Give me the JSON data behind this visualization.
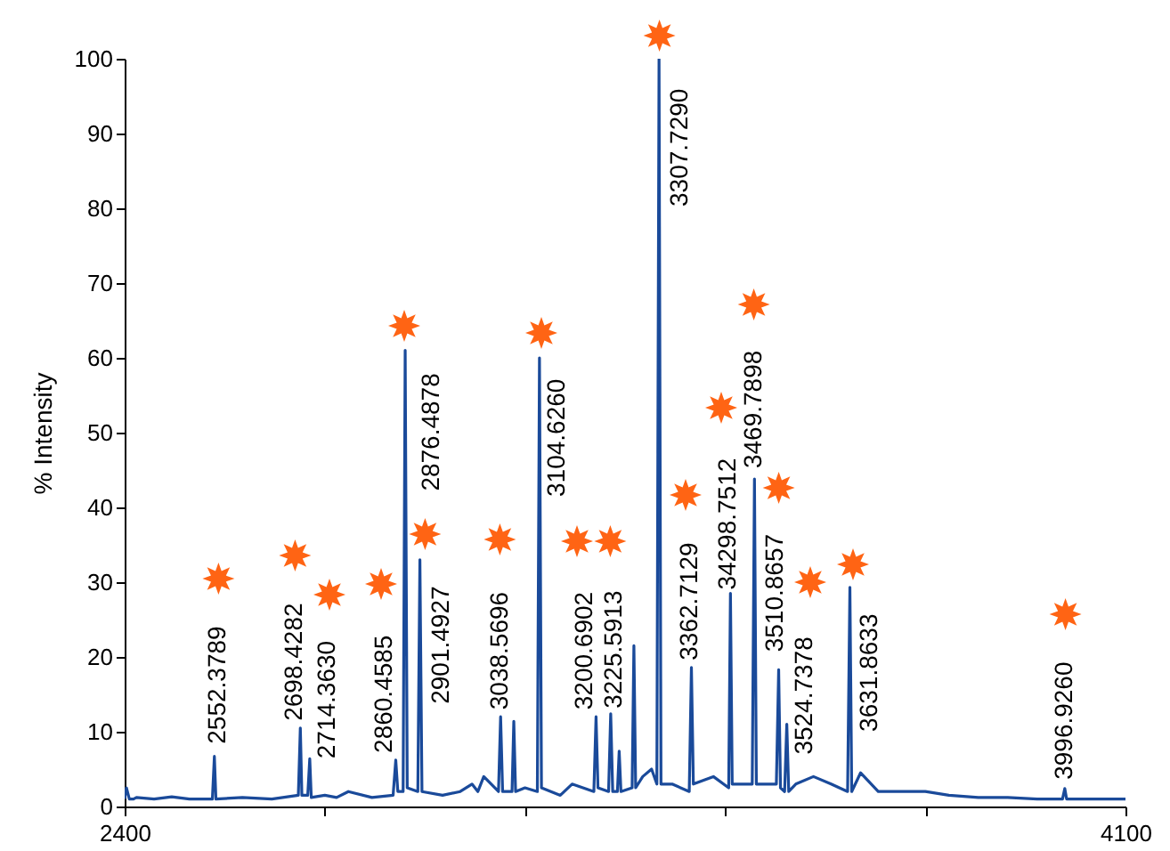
{
  "chart_data": {
    "type": "line",
    "ylabel": "% Intensity",
    "xlim": [
      2400,
      4100
    ],
    "xticks": [
      2400,
      {
        "value": 2740,
        "label": null
      },
      {
        "value": 3080,
        "label": null
      },
      {
        "value": 3420,
        "label": null
      },
      {
        "value": 3760,
        "label": null
      },
      4100
    ],
    "ylim": [
      0,
      100
    ],
    "yticks": [
      0,
      10,
      20,
      30,
      40,
      50,
      60,
      70,
      80,
      90,
      100
    ],
    "grid": false,
    "marker": "none",
    "line_style": "solid",
    "series": [
      {
        "color": "#1a4a9a",
        "x": [
          2400,
          2403,
          2408,
          2415,
          2420,
          2450,
          2480,
          2510,
          2549,
          2552.4,
          2555,
          2600,
          2650,
          2695,
          2698.4,
          2701,
          2711,
          2714.4,
          2717,
          2740,
          2760,
          2780,
          2820,
          2856,
          2860.5,
          2864,
          2873,
          2876.5,
          2880,
          2898,
          2901.5,
          2905,
          2940,
          2970,
          2990,
          3000,
          3010,
          3035,
          3038.6,
          3042,
          3058,
          3061,
          3064,
          3080,
          3101,
          3104.6,
          3108,
          3140,
          3160,
          3197,
          3200.7,
          3204,
          3222,
          3225.6,
          3229,
          3237,
          3240,
          3243,
          3262,
          3265,
          3268,
          3280,
          3295,
          3304,
          3307.7,
          3311,
          3330,
          3359,
          3362.7,
          3366,
          3400,
          3426,
          3429,
          3432,
          3466,
          3469.8,
          3473,
          3490,
          3507,
          3510.9,
          3514,
          3521,
          3524.7,
          3528,
          3540,
          3570,
          3600,
          3628,
          3631.9,
          3635,
          3650,
          3680,
          3720,
          3760,
          3800,
          3850,
          3900,
          3950,
          3993,
          3996.9,
          4000,
          4050,
          4100
        ],
        "values": [
          1,
          2.5,
          1,
          1,
          1.2,
          1,
          1.3,
          1,
          1,
          6.7,
          1,
          1.2,
          1,
          1.5,
          10.5,
          1.5,
          1.5,
          6.4,
          1.2,
          1.5,
          1.2,
          2,
          1.2,
          1.5,
          6.2,
          2,
          2,
          61,
          2.5,
          2,
          33,
          2,
          1.5,
          2,
          3,
          2,
          4,
          2,
          12,
          2,
          2,
          11.4,
          2,
          2.5,
          2,
          60,
          2.5,
          1.5,
          3,
          2,
          12,
          2.5,
          2,
          12.4,
          2,
          2,
          7.4,
          2,
          2.5,
          21.5,
          2.5,
          4,
          5,
          3,
          100,
          3,
          3,
          2,
          18.6,
          3,
          4,
          2.5,
          28.5,
          3,
          3,
          43.8,
          3,
          3,
          3,
          18.3,
          2.5,
          2,
          11,
          2,
          3,
          4,
          3,
          2,
          29.3,
          2,
          4.5,
          2,
          2,
          2,
          1.5,
          1.2,
          1.2,
          1,
          1,
          2.4,
          1,
          1,
          1
        ]
      }
    ],
    "annotations": [
      {
        "text": "2552.3789",
        "x": 2552.4,
        "y": 6.7
      },
      {
        "text": "2698.4282",
        "x": 2698.4,
        "y": 10.5
      },
      {
        "text": "2714.3630",
        "x": 2714.4,
        "y": 6.4
      },
      {
        "text": "2860.4585",
        "x": 2860.5,
        "y": 6.2
      },
      {
        "text": "2876.4878",
        "x": 2876.5,
        "y": 61
      },
      {
        "text": "2901.4927",
        "x": 2901.5,
        "y": 33
      },
      {
        "text": "3038.5696",
        "x": 3038.6,
        "y": 12
      },
      {
        "text": "3104.6260",
        "x": 3104.6,
        "y": 60
      },
      {
        "text": "3200.6902",
        "x": 3200.7,
        "y": 12
      },
      {
        "text": "3225.5913",
        "x": 3225.6,
        "y": 12.4
      },
      {
        "text": "3307.7290",
        "x": 3307.7,
        "y": 100
      },
      {
        "text": "3362.7129",
        "x": 3362.7,
        "y": 18.6
      },
      {
        "text": "34298.7512",
        "x": 3429,
        "y": 28.5
      },
      {
        "text": "3469.7898",
        "x": 3469.8,
        "y": 43.8
      },
      {
        "text": "3510.8657",
        "x": 3510.9,
        "y": 18.3
      },
      {
        "text": "3524.7378",
        "x": 3524.7,
        "y": 11
      },
      {
        "text": "3631.8633",
        "x": 3631.9,
        "y": 29.3
      },
      {
        "text": "3996.9260",
        "x": 3996.9,
        "y": 2.4
      }
    ]
  }
}
